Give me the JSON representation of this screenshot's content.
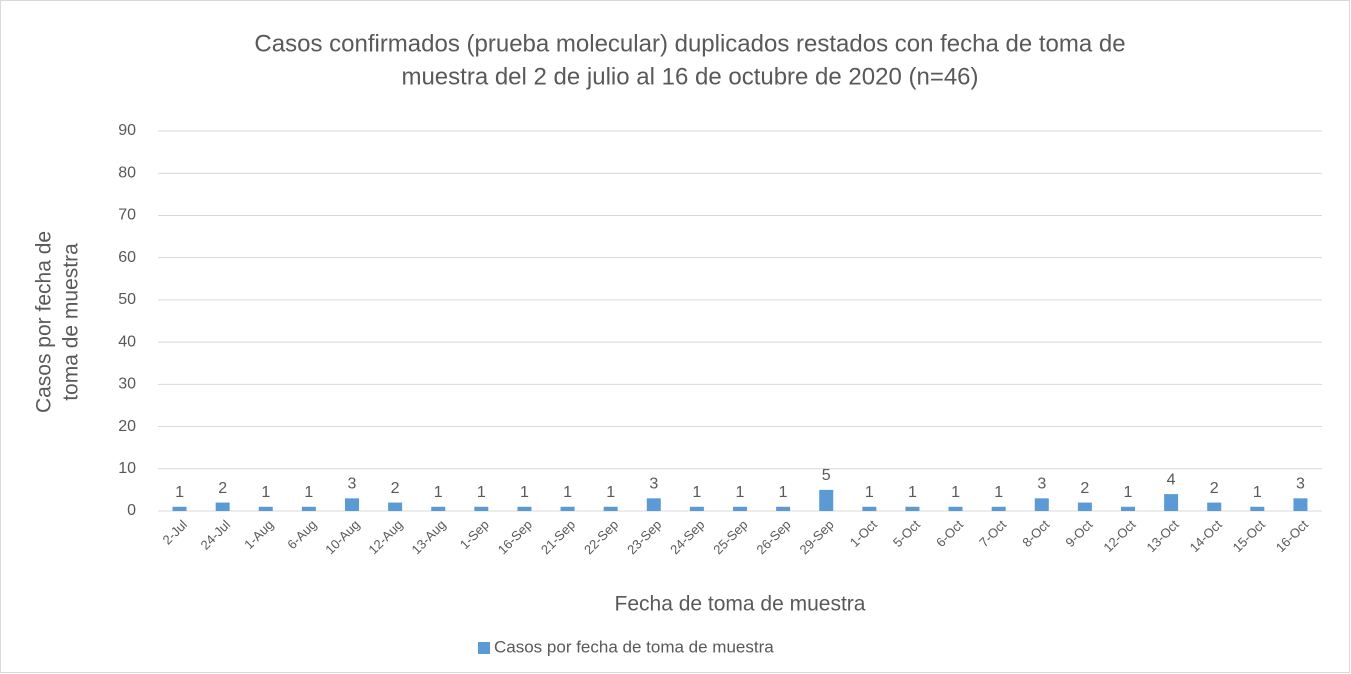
{
  "chart_data": {
    "type": "bar",
    "title": [
      "Casos confirmados (prueba molecular) duplicados restados con fecha de toma de",
      "muestra del 2 de julio al 16 de octubre de 2020 (n=46)"
    ],
    "x_label": "Fecha de toma de muestra",
    "y_label": [
      "Casos por fecha de",
      "toma de muestra"
    ],
    "categories": [
      "2-Jul",
      "24-Jul",
      "1-Aug",
      "6-Aug",
      "10-Aug",
      "12-Aug",
      "13-Aug",
      "1-Sep",
      "16-Sep",
      "21-Sep",
      "22-Sep",
      "23-Sep",
      "24-Sep",
      "25-Sep",
      "26-Sep",
      "29-Sep",
      "1-Oct",
      "5-Oct",
      "6-Oct",
      "7-Oct",
      "8-Oct",
      "9-Oct",
      "12-Oct",
      "13-Oct",
      "14-Oct",
      "15-Oct",
      "16-Oct"
    ],
    "series": [
      {
        "name": "Casos por fecha de toma de muestra",
        "color": "#5b9bd5",
        "values": [
          1,
          2,
          1,
          1,
          3,
          2,
          1,
          1,
          1,
          1,
          1,
          3,
          1,
          1,
          1,
          5,
          1,
          1,
          1,
          1,
          3,
          2,
          1,
          4,
          2,
          1,
          3
        ]
      }
    ],
    "ylim": [
      0,
      90
    ],
    "yticks": [
      0,
      10,
      20,
      30,
      40,
      50,
      60,
      70,
      80,
      90
    ],
    "grid": true,
    "legend": "bottom"
  }
}
